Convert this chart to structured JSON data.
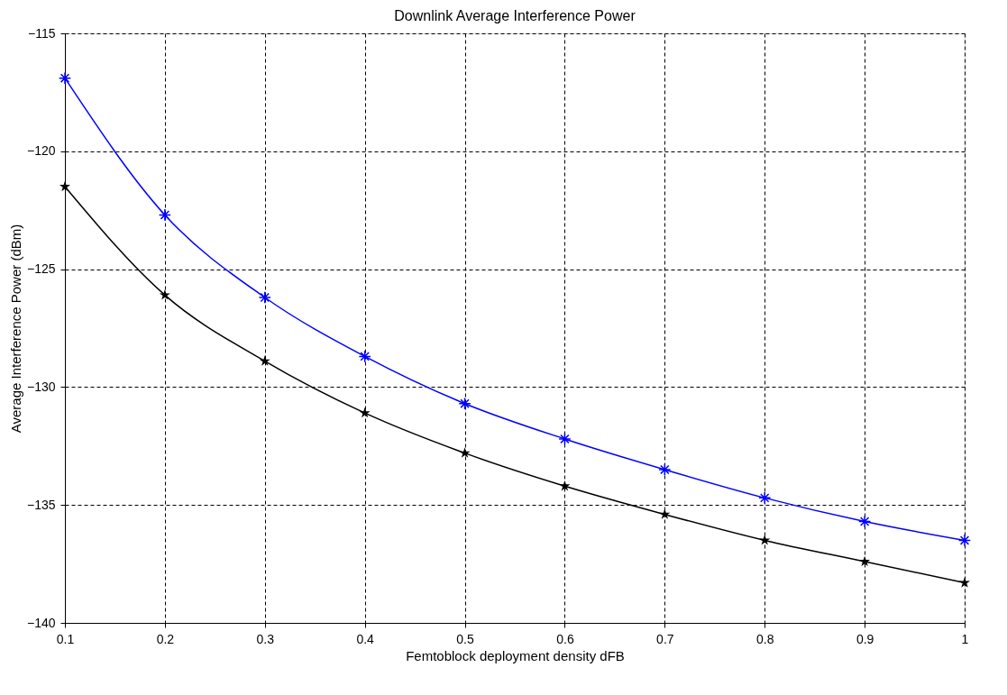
{
  "chart_data": {
    "type": "line",
    "title": "Downlink Average Interference Power",
    "xlabel": "Femtoblock deployment density dFB",
    "ylabel": "Average Interference Power (dBm)",
    "x": [
      0.1,
      0.2,
      0.3,
      0.4,
      0.5,
      0.6,
      0.7,
      0.8,
      0.9,
      1.0
    ],
    "series": [
      {
        "color": "#0000ff",
        "marker": "cross",
        "values": [
          -116.9,
          -122.7,
          -126.2,
          -128.7,
          -130.7,
          -132.2,
          -133.5,
          -134.7,
          -135.7,
          -136.5
        ]
      },
      {
        "color": "#000000",
        "marker": "star",
        "values": [
          -121.5,
          -126.1,
          -128.9,
          -131.1,
          -132.8,
          -134.2,
          -135.4,
          -136.5,
          -137.4,
          -138.3
        ]
      }
    ],
    "xlim": [
      0.1,
      1.0
    ],
    "xticks": [
      0.1,
      0.2,
      0.3,
      0.4,
      0.5,
      0.6,
      0.7,
      0.8,
      0.9,
      1
    ],
    "ylim": [
      -140,
      -115
    ],
    "yticks": [
      -140,
      -135,
      -130,
      -125,
      -120,
      -115
    ],
    "grid": true,
    "line_style": "solid"
  }
}
